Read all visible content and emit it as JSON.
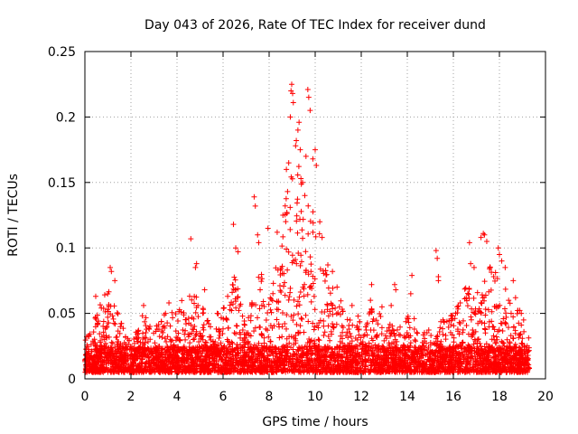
{
  "chart_data": {
    "type": "scatter",
    "title": "Day 043 of 2026, Rate Of TEC Index for receiver dund",
    "xlabel": "GPS time / hours",
    "ylabel": "ROTI / TECUs",
    "xlim": [
      0,
      20
    ],
    "ylim": [
      0,
      0.25
    ],
    "xticks": [
      "0",
      "2",
      "4",
      "6",
      "8",
      "10",
      "12",
      "14",
      "16",
      "18",
      "20"
    ],
    "yticks": [
      "0",
      "0.05",
      "0.1",
      "0.15",
      "0.2",
      "0.25"
    ],
    "grid": true,
    "marker": "+",
    "marker_color": "#ff0000",
    "x_data_range": [
      0,
      19.3
    ],
    "baseline_band": [
      0.005,
      0.025
    ],
    "envelope": [
      [
        0.0,
        0.03
      ],
      [
        0.5,
        0.05
      ],
      [
        1.0,
        0.07
      ],
      [
        1.5,
        0.05
      ],
      [
        2.0,
        0.03
      ],
      [
        2.5,
        0.05
      ],
      [
        3.0,
        0.04
      ],
      [
        3.5,
        0.05
      ],
      [
        4.0,
        0.055
      ],
      [
        4.5,
        0.07
      ],
      [
        5.0,
        0.06
      ],
      [
        5.5,
        0.04
      ],
      [
        6.0,
        0.06
      ],
      [
        6.5,
        0.08
      ],
      [
        7.0,
        0.04
      ],
      [
        7.5,
        0.09
      ],
      [
        8.0,
        0.06
      ],
      [
        8.5,
        0.11
      ],
      [
        9.0,
        0.18
      ],
      [
        9.5,
        0.15
      ],
      [
        10.0,
        0.13
      ],
      [
        10.5,
        0.08
      ],
      [
        11.0,
        0.07
      ],
      [
        11.5,
        0.045
      ],
      [
        12.0,
        0.05
      ],
      [
        12.5,
        0.06
      ],
      [
        13.0,
        0.045
      ],
      [
        13.5,
        0.04
      ],
      [
        14.0,
        0.05
      ],
      [
        14.5,
        0.035
      ],
      [
        15.0,
        0.04
      ],
      [
        15.5,
        0.045
      ],
      [
        16.0,
        0.05
      ],
      [
        16.5,
        0.07
      ],
      [
        17.0,
        0.07
      ],
      [
        17.5,
        0.09
      ],
      [
        18.0,
        0.08
      ],
      [
        18.5,
        0.06
      ],
      [
        19.0,
        0.05
      ],
      [
        19.3,
        0.03
      ]
    ],
    "outliers": [
      {
        "x": 0.47,
        "y": 0.063
      },
      {
        "x": 1.1,
        "y": 0.085
      },
      {
        "x": 1.15,
        "y": 0.082
      },
      {
        "x": 1.3,
        "y": 0.075
      },
      {
        "x": 2.55,
        "y": 0.056
      },
      {
        "x": 3.5,
        "y": 0.05
      },
      {
        "x": 3.65,
        "y": 0.058
      },
      {
        "x": 4.6,
        "y": 0.107
      },
      {
        "x": 4.8,
        "y": 0.085
      },
      {
        "x": 4.85,
        "y": 0.088
      },
      {
        "x": 5.2,
        "y": 0.068
      },
      {
        "x": 6.2,
        "y": 0.063
      },
      {
        "x": 6.45,
        "y": 0.118
      },
      {
        "x": 6.55,
        "y": 0.1
      },
      {
        "x": 6.65,
        "y": 0.097
      },
      {
        "x": 7.35,
        "y": 0.139
      },
      {
        "x": 7.4,
        "y": 0.132
      },
      {
        "x": 7.5,
        "y": 0.11
      },
      {
        "x": 7.55,
        "y": 0.104
      },
      {
        "x": 7.95,
        "y": 0.115
      },
      {
        "x": 8.35,
        "y": 0.112
      },
      {
        "x": 8.6,
        "y": 0.125
      },
      {
        "x": 8.75,
        "y": 0.16
      },
      {
        "x": 8.8,
        "y": 0.143
      },
      {
        "x": 8.85,
        "y": 0.165
      },
      {
        "x": 8.92,
        "y": 0.2
      },
      {
        "x": 8.95,
        "y": 0.22
      },
      {
        "x": 8.98,
        "y": 0.225
      },
      {
        "x": 9.02,
        "y": 0.218
      },
      {
        "x": 9.05,
        "y": 0.211
      },
      {
        "x": 9.15,
        "y": 0.178
      },
      {
        "x": 9.18,
        "y": 0.182
      },
      {
        "x": 9.25,
        "y": 0.19
      },
      {
        "x": 9.3,
        "y": 0.196
      },
      {
        "x": 9.35,
        "y": 0.175
      },
      {
        "x": 9.38,
        "y": 0.153
      },
      {
        "x": 9.45,
        "y": 0.15
      },
      {
        "x": 9.55,
        "y": 0.14
      },
      {
        "x": 9.6,
        "y": 0.17
      },
      {
        "x": 9.68,
        "y": 0.221
      },
      {
        "x": 9.72,
        "y": 0.215
      },
      {
        "x": 9.78,
        "y": 0.205
      },
      {
        "x": 9.9,
        "y": 0.168
      },
      {
        "x": 10.0,
        "y": 0.175
      },
      {
        "x": 10.05,
        "y": 0.163
      },
      {
        "x": 10.2,
        "y": 0.12
      },
      {
        "x": 10.3,
        "y": 0.108
      },
      {
        "x": 10.55,
        "y": 0.087
      },
      {
        "x": 10.75,
        "y": 0.082
      },
      {
        "x": 11.6,
        "y": 0.056
      },
      {
        "x": 12.4,
        "y": 0.06
      },
      {
        "x": 12.45,
        "y": 0.072
      },
      {
        "x": 12.9,
        "y": 0.055
      },
      {
        "x": 13.3,
        "y": 0.056
      },
      {
        "x": 13.45,
        "y": 0.072
      },
      {
        "x": 13.5,
        "y": 0.068
      },
      {
        "x": 14.15,
        "y": 0.065
      },
      {
        "x": 14.2,
        "y": 0.079
      },
      {
        "x": 14.3,
        "y": 0.046
      },
      {
        "x": 15.25,
        "y": 0.098
      },
      {
        "x": 15.3,
        "y": 0.092
      },
      {
        "x": 15.35,
        "y": 0.078
      },
      {
        "x": 15.35,
        "y": 0.075
      },
      {
        "x": 15.55,
        "y": 0.045
      },
      {
        "x": 16.1,
        "y": 0.05
      },
      {
        "x": 16.3,
        "y": 0.058
      },
      {
        "x": 16.7,
        "y": 0.104
      },
      {
        "x": 16.75,
        "y": 0.088
      },
      {
        "x": 16.9,
        "y": 0.085
      },
      {
        "x": 17.2,
        "y": 0.108
      },
      {
        "x": 17.3,
        "y": 0.111
      },
      {
        "x": 17.35,
        "y": 0.11
      },
      {
        "x": 17.45,
        "y": 0.105
      },
      {
        "x": 17.6,
        "y": 0.085
      },
      {
        "x": 17.75,
        "y": 0.078
      },
      {
        "x": 17.95,
        "y": 0.1
      },
      {
        "x": 18.0,
        "y": 0.095
      },
      {
        "x": 18.1,
        "y": 0.09
      },
      {
        "x": 18.25,
        "y": 0.085
      },
      {
        "x": 18.4,
        "y": 0.06
      },
      {
        "x": 18.6,
        "y": 0.075
      },
      {
        "x": 18.7,
        "y": 0.062
      },
      {
        "x": 18.95,
        "y": 0.05
      },
      {
        "x": 19.05,
        "y": 0.045
      }
    ]
  }
}
